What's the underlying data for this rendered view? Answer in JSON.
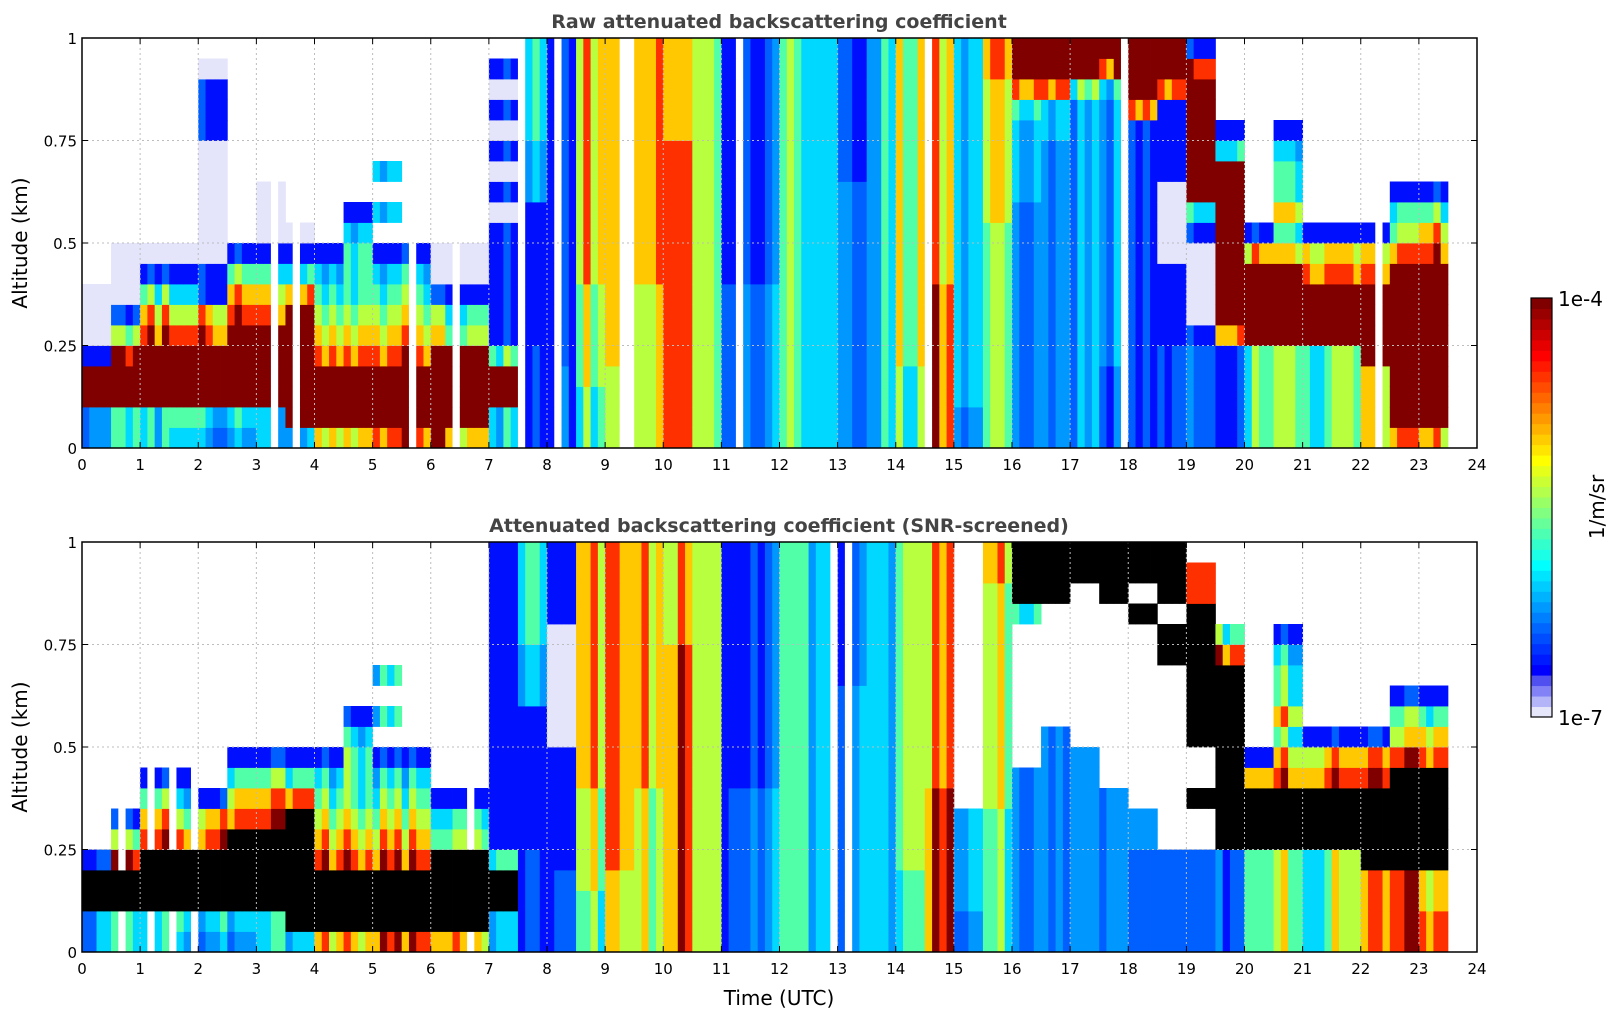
{
  "chart_data": [
    {
      "type": "heatmap",
      "title": "Raw attenuated backscattering coefficient",
      "xlabel": "",
      "ylabel": "Altitude (km)",
      "xlim": [
        0,
        24
      ],
      "ylim": [
        0,
        1
      ],
      "xticks": [
        "0",
        "1",
        "2",
        "3",
        "4",
        "5",
        "6",
        "7",
        "8",
        "9",
        "10",
        "11",
        "12",
        "13",
        "14",
        "15",
        "16",
        "17",
        "18",
        "19",
        "20",
        "21",
        "22",
        "23",
        "24"
      ],
      "yticks": [
        "0",
        "0.25",
        "0.5",
        "0.75",
        "1"
      ],
      "ytick_values": [
        0,
        0.25,
        0.5,
        0.75,
        1
      ],
      "grid": true,
      "time_bin_hours": 0.5,
      "altitude_bin_km": 0.05,
      "level_legend": "digit 0-9 = colour level from 1e-7 (0) to 1e-4 (9) on log scale; '.' = no data",
      "profiles_bottom_to_top": [
        "33991000............",
        "4499851000..........",
        "4499987510..........",
        "4599986410..........",
        "3499987110000001110.",
        "3499998751..........",
        "4499998751000.......",
        "49999998510.........",
        "7999876541..........",
        "799987655541........",
        "8999876541.4.4......",
        "8999876541..........",
        "8999965100..........",
        "7999965100..........",
        "4499511111101010101.",
        "22222111111144455555",
        "22221111111111111111",
        "55566666777777777777",
        "66667777777777777777",
        "66666666777777777777",
        "88888888888888877777",
        "66666666666666666666",
        "22222222111111111111",
        "33333333222222222222",
        "55555555555555555555",
        "44444444444444444444",
        "33333333333332222222",
        "44444444444444444444",
        "55556666666666666666",
        "88888888777777777777",
        "22333333333333333333",
        "55555555555666666677",
        "33333333333344445899",
        "33333333333333344899",
        "33333333333333333599",
        "22223333333333333489",
        "22222222222222228999",
        "22222111100001111899",
        "22222100001499999981",
        "2222289999999951....",
        "55555999971.........",
        "6666699997575541....",
        "55555999871.........",
        "66666999871.........",
        "77779999871.........",
        "8999999998651.......",
        "7999999998751.......",
        "...................."
      ]
    },
    {
      "type": "heatmap",
      "title": "Attenuated backscattering coefficient (SNR-screened)",
      "xlabel": "Time (UTC)",
      "ylabel": "Altitude (km)",
      "xlim": [
        0,
        24
      ],
      "ylim": [
        0,
        1
      ],
      "xticks": [
        "0",
        "1",
        "2",
        "3",
        "4",
        "5",
        "6",
        "7",
        "8",
        "9",
        "10",
        "11",
        "12",
        "13",
        "14",
        "15",
        "16",
        "17",
        "18",
        "19",
        "20",
        "21",
        "22",
        "23",
        "24"
      ],
      "yticks": [
        "0",
        "0.25",
        "0.5",
        "0.75",
        "1"
      ],
      "ytick_values": [
        0,
        0.25,
        0.5,
        0.75,
        1
      ],
      "grid": true,
      "time_bin_hours": 0.5,
      "altitude_bin_km": 0.05,
      "level_legend": "digit 0-9 = colour level from 1e-7 (0) to 1e-4 (9); 'k' = black (saturated); '.' = screened / no data",
      "profiles_bottom_to_top": [
        "33kk1...............",
        "44kk851.............",
        "44kkk8751...........",
        "45kkk8641...........",
        "34kkk871............",
        "34kkkk8751..........",
        "44kkkk8751..........",
        "4kkkkkk851..........",
        "7kkk876541..........",
        "7kkk87655541........",
        "8kkk876541.4.4......",
        "8kkk876541..........",
        "8kkkk651............",
        "7kkkk651............",
        "44kk5111111111111111",
        "22222111111144455555",
        "22221111110000001111",
        "55566666777777777777",
        "66667777777777777777",
        "66666666777777777777",
        "88888888888888877777",
        "66666666666666666666",
        "22222222111111111111",
        "33333333222222222222",
        "55555555555555555555",
        "44444444444444444444",
        "33333333333332222222",
        "44444444444444444444",
        "55556666666666666666",
        "88888888777777777777",
        "2233333.............",
        "55555556666666666677",
        "333333333.......5kkk",
        "33333333333......kkk",
        "3333333333........kk",
        "33333333.........kkk",
        "2222233.........k.kk",
        "22222.........kk.kkk",
        "22222..k..kkkkkkk88.",
        "22222kkkkkkkkk85....",
        "55555kkk71..........",
        "66666kkk87575541....",
        "55555kkk871.........",
        "66666kkk871.........",
        "7777kkkk871.........",
        "8888kkkkk8651.......",
        "8877kkkkk8751.......",
        "...................."
      ]
    }
  ],
  "colorbar": {
    "label": "1/m/sr",
    "max_label": "1e-4",
    "min_label": "1e-7",
    "scale": "log",
    "range": [
      1e-07,
      0.0001
    ],
    "levels": {
      "0": "#e4e4fa",
      "1": "#0010ff",
      "2": "#0060ff",
      "3": "#0098ff",
      "4": "#00d8ff",
      "5": "#50ffa8",
      "6": "#b8ff40",
      "7": "#ffc800",
      "8": "#ff3000",
      "9": "#800000",
      "k": "#000000"
    }
  }
}
